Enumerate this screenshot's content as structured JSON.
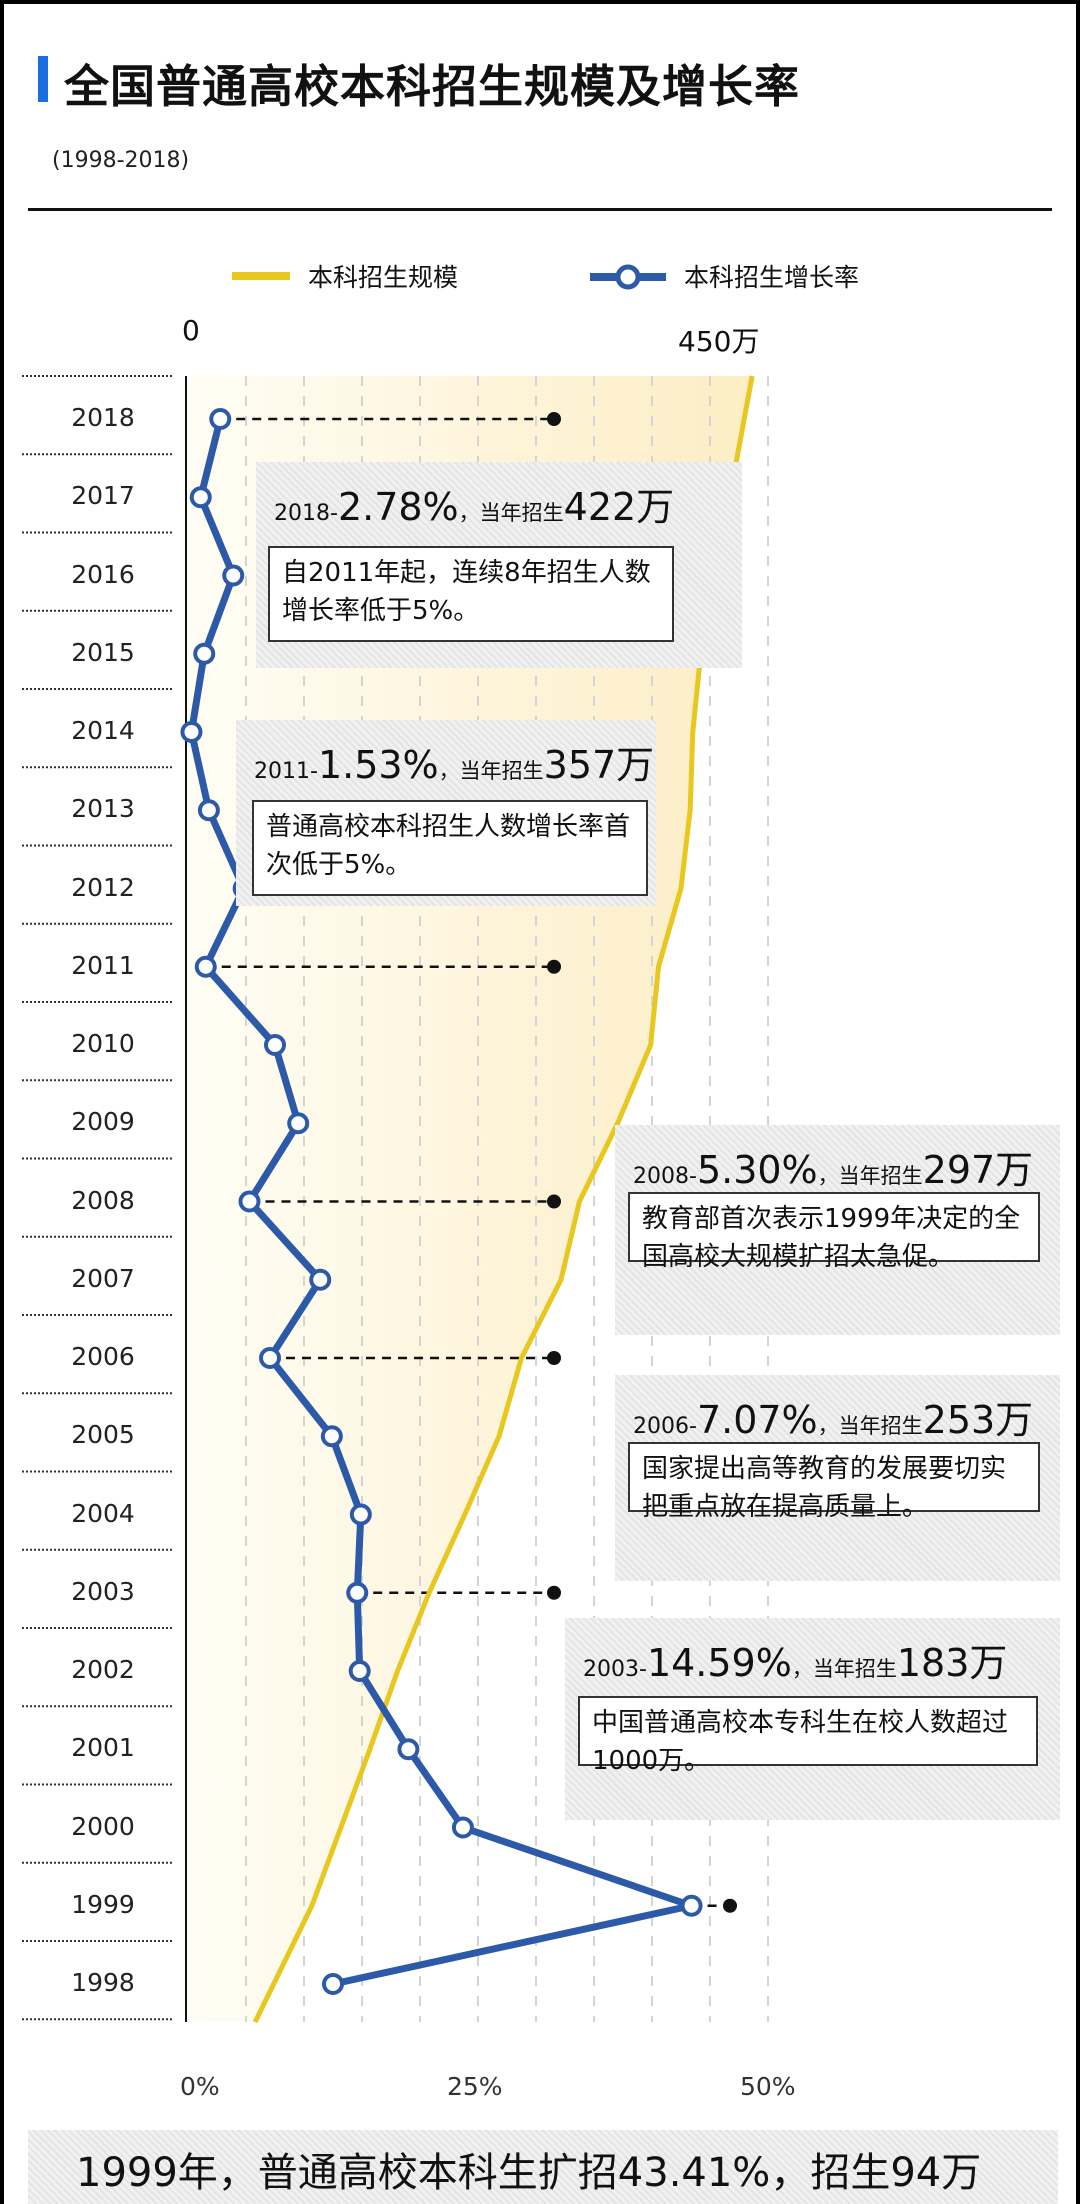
{
  "header": {
    "title": "全国普通高校本科招生规模及增长率",
    "subtitle": "(1998-2018)"
  },
  "legend": {
    "scale_label": "本科招生规模",
    "rate_label": "本科招生增长率"
  },
  "colors": {
    "accent": "#1a6fe0",
    "scale_line": "#e8c71e",
    "rate_line": "#2c5aa8"
  },
  "chart_data": {
    "type": "line",
    "title": "全国普通高校本科招生规模及增长率",
    "orientation": "horizontal (years on vertical axis, top = 2018)",
    "years": [
      "2018",
      "2017",
      "2016",
      "2015",
      "2014",
      "2013",
      "2012",
      "2011",
      "2010",
      "2009",
      "2008",
      "2007",
      "2006",
      "2005",
      "2004",
      "2003",
      "2002",
      "2001",
      "2000",
      "1999",
      "1998"
    ],
    "top_axis": {
      "label_min": "0",
      "label_max": "450万",
      "range": [
        0,
        450
      ],
      "unit": "万"
    },
    "bottom_axis": {
      "ticks": [
        "0%",
        "25%",
        "50%"
      ],
      "range": [
        0,
        50
      ],
      "unit": "%"
    },
    "series": [
      {
        "name": "本科招生规模",
        "unit": "万",
        "values": [
          422,
          411,
          405,
          389,
          383,
          381,
          374,
          357,
          351,
          326,
          297,
          283,
          253,
          236,
          210,
          183,
          159,
          138,
          116,
          94,
          65
        ]
      },
      {
        "name": "本科招生增长率",
        "unit": "%",
        "values": [
          2.78,
          1.1,
          3.9,
          1.4,
          0.3,
          1.8,
          4.8,
          1.53,
          7.5,
          9.5,
          5.3,
          11.4,
          7.07,
          12.4,
          14.9,
          14.59,
          14.8,
          19.0,
          23.7,
          43.41,
          12.5
        ]
      }
    ],
    "highlighted_years": [
      "2018",
      "2011",
      "2008",
      "2006",
      "2003",
      "1999"
    ],
    "grid": true,
    "legend_position": "top-center"
  },
  "annotations": [
    {
      "year": "2018-",
      "pct": "2.78%",
      "mid": "，当年招生",
      "num": "422万",
      "text": "自2011年起，连续8年招生人数增长率低于5%。"
    },
    {
      "year": "2011-",
      "pct": "1.53%",
      "mid": "，当年招生",
      "num": "357万",
      "text": "普通高校本科招生人数增长率首次低于5%。"
    },
    {
      "year": "2008-",
      "pct": "5.30%",
      "mid": "，当年招生",
      "num": "297万",
      "text": "教育部首次表示1999年决定的全国高校大规模扩招太急促。"
    },
    {
      "year": "2006-",
      "pct": "7.07%",
      "mid": "，当年招生",
      "num": "253万",
      "text": "国家提出高等教育的发展要切实把重点放在提高质量上。"
    },
    {
      "year": "2003-",
      "pct": "14.59%",
      "mid": "，当年招生",
      "num": "183万",
      "text": "中国普通高校本专科生在校人数超过1000万。"
    }
  ],
  "footer": {
    "banner": "1999年，普通高校本科生扩招43.41%，招生94万"
  }
}
